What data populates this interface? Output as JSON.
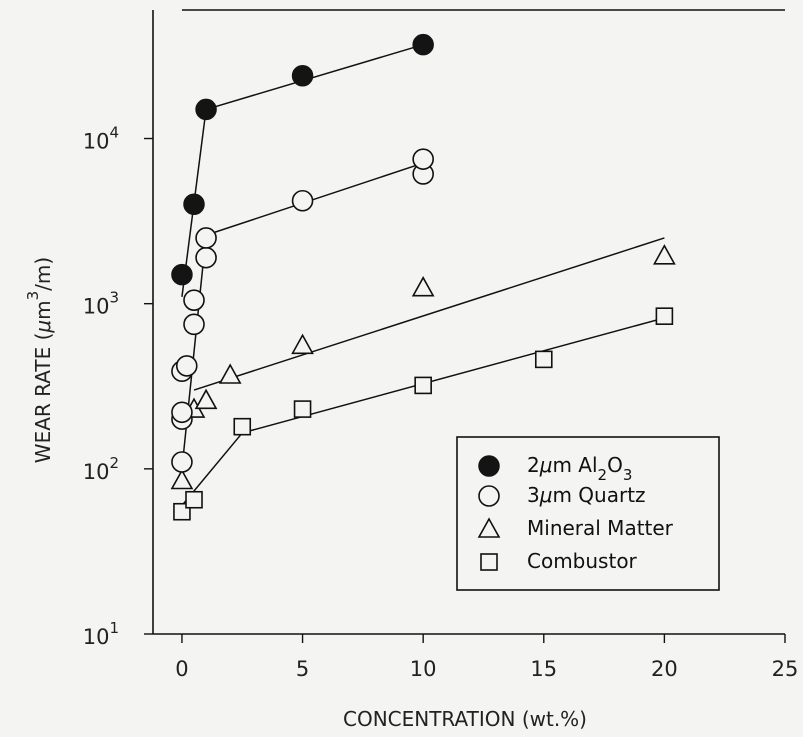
{
  "chart_data": {
    "type": "scatter",
    "xlabel": "CONCENTRATION (wt.%)",
    "ylabel": {
      "pre": "WEAR RATE (",
      "mu": "μ",
      "mid": "m",
      "sup": "3",
      "post": "/m)"
    },
    "x_ticks": [
      "0",
      "5",
      "10",
      "15",
      "20",
      "25"
    ],
    "y_ticks": [
      {
        "base": "10",
        "exp": "1"
      },
      {
        "base": "10",
        "exp": "2"
      },
      {
        "base": "10",
        "exp": "3"
      },
      {
        "base": "10",
        "exp": "4"
      }
    ],
    "xlim": [
      -1.2,
      25
    ],
    "ylim": [
      10,
      60000
    ],
    "yscale": "log",
    "grid": false,
    "legend_position": "lower-right",
    "series": [
      {
        "name": "2μm Al2O3",
        "label": {
          "pre": "2",
          "mu": "μ",
          "post": "m Al",
          "sub1": "2",
          "mid": "O",
          "sub2": "3"
        },
        "marker": "filled-circle",
        "points": [
          [
            0,
            1500
          ],
          [
            0.5,
            4000
          ],
          [
            1,
            15000
          ],
          [
            5,
            24000
          ],
          [
            10,
            37000
          ]
        ],
        "fit_lines": [
          [
            [
              0,
              1100
            ],
            [
              1,
              15000
            ]
          ],
          [
            [
              1,
              15000
            ],
            [
              10,
              37000
            ]
          ]
        ]
      },
      {
        "name": "3μm Quartz",
        "label": {
          "pre": "3",
          "mu": "μ",
          "post": "m Quartz"
        },
        "marker": "open-circle",
        "points": [
          [
            0,
            110
          ],
          [
            0,
            200
          ],
          [
            0,
            220
          ],
          [
            0,
            390
          ],
          [
            0.2,
            420
          ],
          [
            0.5,
            750
          ],
          [
            0.5,
            1050
          ],
          [
            1,
            1900
          ],
          [
            1,
            2500
          ],
          [
            5,
            4200
          ],
          [
            10,
            6100
          ],
          [
            10,
            7500
          ]
        ],
        "fit_lines": [
          [
            [
              0,
              100
            ],
            [
              1,
              2600
            ]
          ],
          [
            [
              1,
              2600
            ],
            [
              10,
              7100
            ]
          ]
        ]
      },
      {
        "name": "Mineral Matter",
        "label": {
          "pre": "Mineral Matter"
        },
        "marker": "open-triangle",
        "points": [
          [
            0,
            85
          ],
          [
            0.5,
            230
          ],
          [
            1,
            260
          ],
          [
            2,
            370
          ],
          [
            5,
            560
          ],
          [
            10,
            1250
          ],
          [
            20,
            1950
          ]
        ],
        "fit_lines": [
          [
            [
              0.5,
              300
            ],
            [
              20,
              2500
            ]
          ]
        ]
      },
      {
        "name": "Combustor",
        "label": {
          "pre": "Combustor"
        },
        "marker": "open-square",
        "points": [
          [
            0,
            55
          ],
          [
            0.5,
            65
          ],
          [
            2.5,
            180
          ],
          [
            5,
            230
          ],
          [
            10,
            320
          ],
          [
            15,
            460
          ],
          [
            20,
            840
          ]
        ],
        "fit_lines": [
          [
            [
              0,
              60
            ],
            [
              2.5,
              165
            ]
          ],
          [
            [
              2.5,
              165
            ],
            [
              20,
              820
            ]
          ]
        ]
      }
    ]
  }
}
